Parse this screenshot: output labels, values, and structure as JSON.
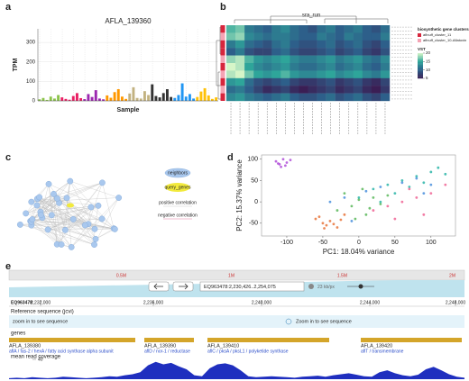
{
  "panel_labels": [
    "a",
    "b",
    "c",
    "d",
    "e"
  ],
  "chart_data": [
    {
      "type": "bar",
      "title": "AFLA_139360",
      "ylabel": "TPM",
      "xlabel": "Sample",
      "values": [
        8,
        15,
        5,
        22,
        12,
        30,
        18,
        10,
        6,
        25,
        40,
        14,
        9,
        35,
        20,
        55,
        12,
        8,
        28,
        16,
        45,
        60,
        22,
        10,
        38,
        70,
        15,
        12,
        50,
        30,
        85,
        25,
        18,
        40,
        60,
        20,
        15,
        30,
        90,
        22,
        35,
        12,
        20,
        48,
        65,
        28,
        10,
        18
      ],
      "colors": [
        "#8bc34a",
        "#8bc34a",
        "#8bc34a",
        "#8bc34a",
        "#8bc34a",
        "#8bc34a",
        "#e91e63",
        "#e91e63",
        "#e91e63",
        "#e91e63",
        "#e91e63",
        "#e91e63",
        "#9c27b0",
        "#9c27b0",
        "#9c27b0",
        "#9c27b0",
        "#9c27b0",
        "#9c27b0",
        "#ff9800",
        "#ff9800",
        "#ff9800",
        "#ff9800",
        "#ff9800",
        "#ff9800",
        "#c2b280",
        "#c2b280",
        "#c2b280",
        "#c2b280",
        "#c2b280",
        "#c2b280",
        "#333333",
        "#333333",
        "#333333",
        "#333333",
        "#333333",
        "#333333",
        "#2196f3",
        "#2196f3",
        "#2196f3",
        "#2196f3",
        "#2196f3",
        "#2196f3",
        "#ffc107",
        "#ffc107",
        "#ffc107",
        "#ffc107",
        "#ffc107",
        "#ffc107"
      ],
      "ylim": [
        0,
        370
      ],
      "yticks": [
        0,
        100,
        200,
        300
      ],
      "grid": true
    },
    {
      "type": "heatmap",
      "title": "sra_run",
      "legend_title": "biosynthetic gene clusters",
      "groups": [
        {
          "name": "aflnuff_cluster_11",
          "color": "#d7263d"
        },
        {
          "name": "aflnuff_cluster_10-Aflatoxin",
          "color": "#f4a3b4"
        }
      ],
      "row_group": [
        "aflnuff_cluster_11",
        "aflnuff_cluster_10-Aflatoxin",
        "aflnuff_cluster_11",
        "aflnuff_cluster_11",
        "aflnuff_cluster_10-Aflatoxin",
        "aflnuff_cluster_11",
        "aflnuff_cluster_10-Aflatoxin",
        "aflnuff_cluster_11",
        "aflnuff_cluster_10-Aflatoxin",
        "aflnuff_cluster_11"
      ],
      "values": [
        [
          16,
          17,
          12,
          11,
          10,
          12,
          13,
          11,
          10,
          9,
          11,
          12,
          10,
          11,
          12,
          10,
          9,
          11
        ],
        [
          17,
          18,
          13,
          12,
          11,
          12,
          12,
          11,
          10,
          10,
          12,
          11,
          10,
          12,
          11,
          10,
          10,
          12
        ],
        [
          12,
          14,
          11,
          10,
          9,
          11,
          12,
          10,
          9,
          9,
          10,
          11,
          9,
          10,
          11,
          9,
          8,
          10
        ],
        [
          10,
          12,
          9,
          8,
          8,
          10,
          11,
          9,
          8,
          8,
          9,
          10,
          8,
          9,
          10,
          8,
          7,
          9
        ],
        [
          18,
          19,
          16,
          14,
          13,
          14,
          15,
          13,
          12,
          12,
          13,
          14,
          12,
          13,
          14,
          12,
          11,
          13
        ],
        [
          20,
          19,
          15,
          13,
          12,
          13,
          14,
          12,
          11,
          11,
          12,
          13,
          11,
          12,
          13,
          11,
          10,
          12
        ],
        [
          19,
          20,
          17,
          15,
          14,
          15,
          16,
          14,
          13,
          13,
          14,
          15,
          13,
          14,
          15,
          13,
          12,
          14
        ],
        [
          14,
          15,
          11,
          9,
          8,
          9,
          10,
          8,
          7,
          7,
          8,
          9,
          7,
          8,
          9,
          7,
          6,
          8
        ],
        [
          11,
          12,
          10,
          8,
          6,
          7,
          8,
          6,
          5,
          6,
          7,
          8,
          6,
          7,
          8,
          6,
          5,
          7
        ],
        [
          13,
          14,
          12,
          11,
          10,
          11,
          12,
          10,
          9,
          9,
          10,
          11,
          9,
          10,
          11,
          9,
          8,
          10
        ]
      ],
      "colorbar_title": "VST",
      "vlim": [
        5,
        20
      ],
      "vticks": [
        20,
        15,
        10,
        5
      ]
    },
    {
      "type": "scatter",
      "xlabel": "PC1: 18.04% variance",
      "ylabel": "PC2: 15.37% variance",
      "xlim": [
        -135,
        134
      ],
      "ylim": [
        -80,
        110
      ],
      "xticks": [
        -100,
        -50,
        0,
        50,
        100
      ],
      "yticks": [
        -50,
        0,
        50,
        100
      ],
      "series": [
        {
          "color": "#b04fd8",
          "x": [
            -115,
            -110,
            -105,
            -100,
            -108,
            -95,
            -112,
            -102
          ],
          "y": [
            95,
            88,
            100,
            92,
            82,
            98,
            90,
            85
          ]
        },
        {
          "color": "#e8743b",
          "x": [
            -60,
            -50,
            -45,
            -40,
            -30,
            -55,
            -35,
            -25,
            -48,
            -20
          ],
          "y": [
            -40,
            -50,
            -55,
            -45,
            -60,
            -35,
            -52,
            -42,
            -62,
            -30
          ]
        },
        {
          "color": "#5cb85c",
          "x": [
            -30,
            -10,
            0,
            10,
            20,
            -20,
            30,
            5,
            15,
            40,
            -5
          ],
          "y": [
            -20,
            -10,
            5,
            -30,
            10,
            20,
            -5,
            30,
            -15,
            15,
            -40
          ]
        },
        {
          "color": "#2bb5a8",
          "x": [
            0,
            20,
            40,
            60,
            80,
            100,
            50,
            70,
            90,
            120,
            30,
            110
          ],
          "y": [
            10,
            30,
            40,
            50,
            60,
            70,
            20,
            35,
            45,
            65,
            0,
            80
          ]
        },
        {
          "color": "#4a8fdd",
          "x": [
            -40,
            -20,
            10,
            30,
            60,
            80,
            100,
            90,
            -10
          ],
          "y": [
            0,
            10,
            25,
            35,
            45,
            55,
            40,
            20,
            -45
          ]
        },
        {
          "color": "#f06595",
          "x": [
            20,
            40,
            60,
            80,
            70,
            50,
            100,
            120,
            90
          ],
          "y": [
            -20,
            -10,
            0,
            10,
            30,
            -40,
            20,
            40,
            -30
          ]
        }
      ]
    },
    {
      "type": "area",
      "title": "mean read coverage",
      "color": "#1f2fbf",
      "ylim": [
        0,
        40
      ],
      "yticks": [
        40
      ],
      "values": [
        2,
        3,
        2,
        4,
        3,
        2,
        3,
        5,
        4,
        3,
        2,
        3,
        4,
        6,
        5,
        8,
        10,
        14,
        28,
        35,
        30,
        33,
        26,
        20,
        8,
        6,
        22,
        30,
        32,
        28,
        18,
        6,
        4,
        5,
        6,
        5,
        4,
        3,
        5,
        6,
        7,
        5,
        8,
        10,
        12,
        9,
        6,
        5,
        14,
        18,
        12,
        8,
        6,
        9,
        20,
        25,
        18,
        10,
        5,
        3
      ]
    }
  ],
  "network": {
    "legend": [
      "neighbors",
      "query_genes",
      "positive correlation",
      "negative correlation"
    ]
  },
  "browser": {
    "overview_ticks": [
      "0.5M",
      "1M",
      "1.5M",
      "2M"
    ],
    "location": "EQ963478:2,230,426..2,254,075",
    "scale": "23 kb/px",
    "contig": "EQ963478",
    "ruler": [
      "2,232,000",
      "2,236,000",
      "2,240,000",
      "2,244,000",
      "2,248,000"
    ],
    "reference_title": "Reference sequence (jcvi)",
    "reference_messages": [
      "zoom in to see sequence",
      "Zoom in to see sequence"
    ],
    "genes_title": "genes",
    "genes": [
      {
        "id": "AFLA_139380",
        "desc": "aflA / fas-2 / hexA / fatty acid synthase alpha subunit"
      },
      {
        "id": "AFLA_139390",
        "desc": "aflD / nor-1 / reductase"
      },
      {
        "id": "AFLA_139410",
        "desc": "aflC / pksA / pksL1 / polyketide synthase"
      },
      {
        "id": "AFLA_139420",
        "desc": "aflT / transmembrane"
      }
    ]
  }
}
